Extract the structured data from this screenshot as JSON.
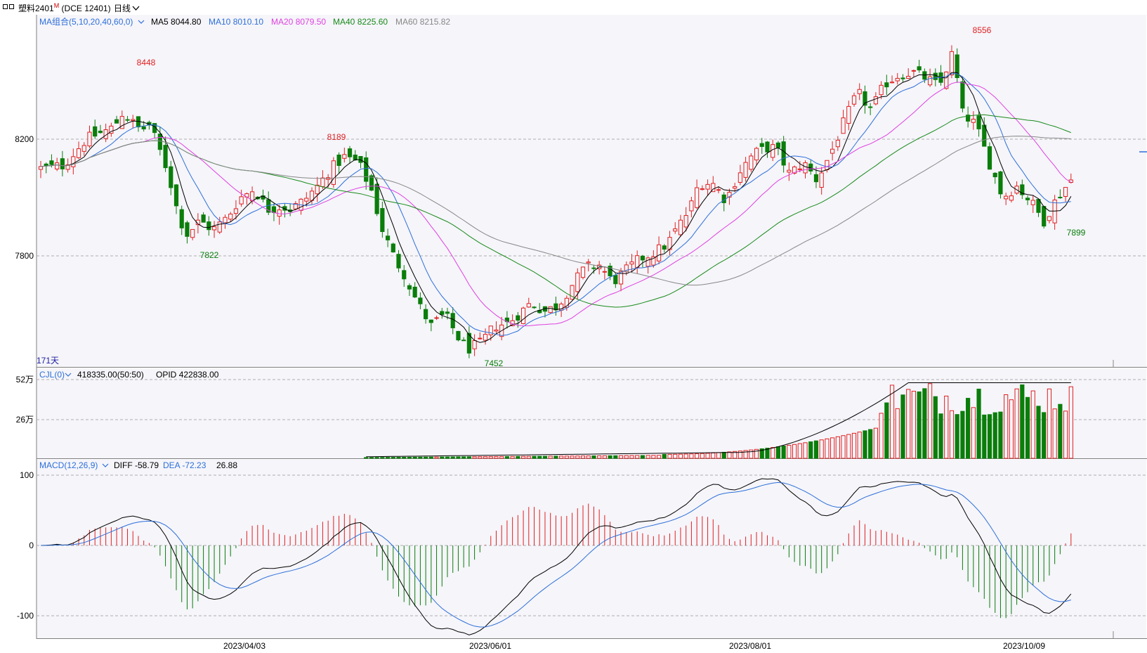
{
  "header": {
    "contract": "塑料2401",
    "contract_sup": "M",
    "exchange": "(DCE 12401)",
    "period": "日线",
    "icons": [
      "window-icon",
      "chevron-down-icon"
    ]
  },
  "price_panel": {
    "indicator_name": "MA组合(5,10,20,40,60,0)",
    "ma": [
      {
        "name": "MA5",
        "value": "8044.80",
        "color": "#000000"
      },
      {
        "name": "MA10",
        "value": "8010.10",
        "color": "#2e6fd8"
      },
      {
        "name": "MA20",
        "value": "8079.50",
        "color": "#e040e0"
      },
      {
        "name": "MA40",
        "value": "8225.60",
        "color": "#1a8a1a"
      },
      {
        "name": "MA60",
        "value": "8215.82",
        "color": "#888888"
      }
    ],
    "y_ticks": [
      "8200",
      "7800"
    ],
    "days_label": "171天",
    "annotations": {
      "high_1": "8448",
      "low_1": "7822",
      "high_2": "8189",
      "low_2": "7452",
      "high_3": "8556",
      "low_3": "7899"
    }
  },
  "volume_panel": {
    "indicator_name": "CJL(0)",
    "values": "418335.00(50:50)",
    "opid_label": "OPID",
    "opid_value": "422838.00",
    "y_ticks": [
      "52万",
      "26万"
    ]
  },
  "macd_panel": {
    "indicator_name": "MACD(12,26,9)",
    "diff_label": "DIFF",
    "diff_value": "-58.79",
    "dea_label": "DEA",
    "dea_value": "-72.23",
    "macd_value": "26.88",
    "y_ticks": [
      "100",
      "0",
      "-100"
    ]
  },
  "x_axis": {
    "dates": [
      "2023/04/03",
      "2023/06/01",
      "2023/08/01",
      "2023/10/09"
    ]
  },
  "colors": {
    "up": "#e02020",
    "down": "#0a7d0a",
    "grid": "#c8c8c8",
    "bg": "#f5f5fa"
  },
  "chart_data": {
    "type": "candlestick",
    "price_axis_ticks": [
      8200,
      7800
    ],
    "ma_latest": {
      "MA5": 8044.8,
      "MA10": 8010.1,
      "MA20": 8079.5,
      "MA40": 8225.6,
      "MA60": 8215.82
    },
    "marked_extremes": [
      {
        "label": "8448",
        "kind": "high"
      },
      {
        "label": "7822",
        "kind": "low"
      },
      {
        "label": "8189",
        "kind": "high"
      },
      {
        "label": "7452",
        "kind": "low"
      },
      {
        "label": "8556",
        "kind": "high"
      },
      {
        "label": "7899",
        "kind": "low"
      }
    ],
    "volume_axis_ticks": [
      "52万",
      "26万"
    ],
    "macd": {
      "diff": -58.79,
      "dea": -72.23,
      "macd": 26.88,
      "axis_ticks": [
        100,
        0,
        -100
      ]
    },
    "x_ticks": [
      "2023/04/03",
      "2023/06/01",
      "2023/08/01",
      "2023/10/09"
    ]
  }
}
